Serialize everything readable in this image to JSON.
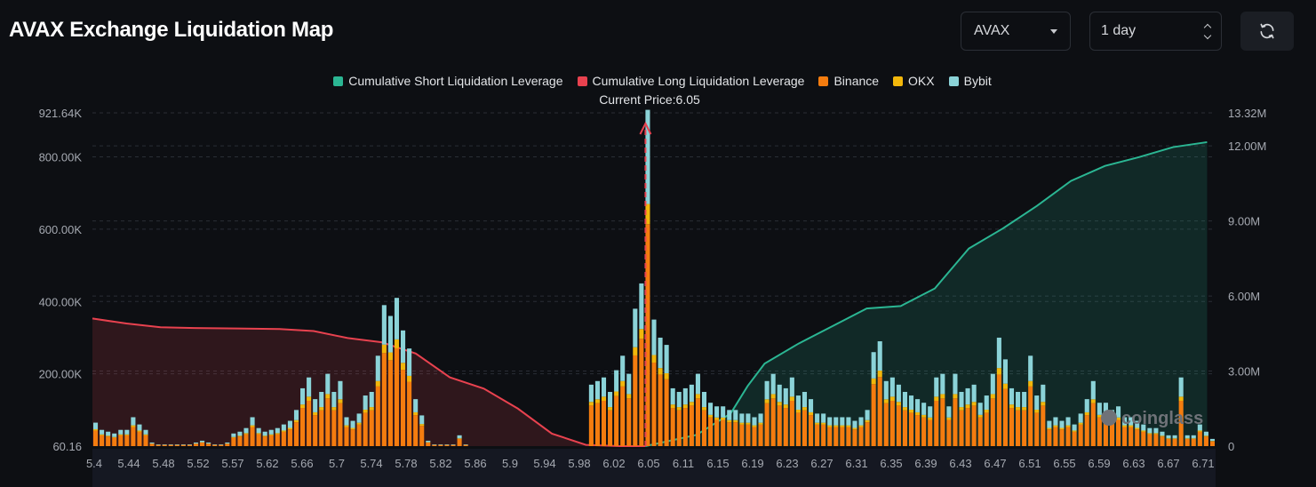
{
  "header": {
    "title": "AVAX Exchange Liquidation Map",
    "coin_select": "AVAX",
    "range_select": "1 day"
  },
  "icons": {
    "refresh": "refresh-icon",
    "coin_dropdown": "chevron-down-icon",
    "range_dropdown": "up-down-chevron-icon"
  },
  "watermark": "coinglass",
  "colors": {
    "background": "#0d0f13",
    "short": "#2bb693",
    "long": "#e8424f",
    "binance": "#f47c0f",
    "okx": "#f2b70b",
    "bybit": "#8bd3d8",
    "marker": "#e8424f"
  },
  "chart_data": {
    "type": "bar",
    "title": "AVAX Exchange Liquidation Map",
    "current_price_label": "Current Price:6.05",
    "current_price": 6.05,
    "legend": [
      {
        "name": "Cumulative Short Liquidation Leverage",
        "color": "#2bb693"
      },
      {
        "name": "Cumulative Long Liquidation Leverage",
        "color": "#e8424f"
      },
      {
        "name": "Binance",
        "color": "#f47c0f"
      },
      {
        "name": "OKX",
        "color": "#f2b70b"
      },
      {
        "name": "Bybit",
        "color": "#8bd3d8"
      }
    ],
    "x_tick_labels": [
      "5.4",
      "5.44",
      "5.48",
      "5.52",
      "5.57",
      "5.62",
      "5.66",
      "5.7",
      "5.74",
      "5.78",
      "5.82",
      "5.86",
      "5.9",
      "5.94",
      "5.98",
      "6.02",
      "6.05",
      "6.11",
      "6.15",
      "6.19",
      "6.23",
      "6.27",
      "6.31",
      "6.35",
      "6.39",
      "6.43",
      "6.47",
      "6.51",
      "6.55",
      "6.59",
      "6.63",
      "6.67",
      "6.71"
    ],
    "y_left_ticks": [
      "60.16",
      "200.00K",
      "400.00K",
      "600.00K",
      "800.00K",
      "921.64K"
    ],
    "y_left_values": [
      60.16,
      200000,
      400000,
      600000,
      800000,
      921640
    ],
    "y_left_range": [
      60.16,
      921640
    ],
    "y_right_ticks": [
      "0",
      "3.00M",
      "6.00M",
      "9.00M",
      "12.00M",
      "13.32M"
    ],
    "y_right_values": [
      0,
      3000000,
      6000000,
      9000000,
      12000000,
      13320000
    ],
    "y_right_range": [
      0,
      13320000
    ],
    "grid": true,
    "legend_position": "top-center",
    "bar_totals": [
      65,
      45,
      40,
      35,
      45,
      45,
      80,
      60,
      45,
      10,
      5,
      5,
      5,
      5,
      5,
      5,
      10,
      15,
      10,
      5,
      5,
      10,
      35,
      40,
      50,
      80,
      50,
      40,
      45,
      50,
      60,
      70,
      100,
      160,
      190,
      130,
      150,
      200,
      150,
      180,
      80,
      70,
      90,
      140,
      150,
      250,
      390,
      360,
      410,
      320,
      270,
      130,
      85,
      15,
      5,
      5,
      5,
      5,
      30,
      5,
      0,
      0,
      0,
      0,
      0,
      0,
      0,
      0,
      0,
      0,
      0,
      0,
      0,
      0,
      0,
      0,
      0,
      0,
      0,
      170,
      180,
      190,
      150,
      210,
      250,
      200,
      380,
      450,
      930,
      350,
      300,
      280,
      160,
      150,
      160,
      170,
      200,
      150,
      120,
      110,
      110,
      100,
      100,
      90,
      90,
      80,
      90,
      180,
      200,
      170,
      160,
      190,
      140,
      150,
      130,
      90,
      90,
      80,
      80,
      80,
      80,
      70,
      80,
      100,
      260,
      290,
      180,
      190,
      170,
      150,
      140,
      130,
      120,
      110,
      190,
      200,
      110,
      200,
      150,
      160,
      170,
      120,
      140,
      200,
      300,
      240,
      160,
      150,
      150,
      250,
      140,
      170,
      70,
      80,
      70,
      80,
      60,
      90,
      130,
      180,
      120,
      120,
      100,
      110,
      80,
      80,
      70,
      60,
      50,
      50,
      40,
      30,
      30,
      190,
      30,
      30,
      60,
      40,
      20
    ],
    "bar_totals_unit": "K",
    "cumulative_long": [
      {
        "price": 5.4,
        "value": 5100000
      },
      {
        "price": 5.44,
        "value": 4900000
      },
      {
        "price": 5.48,
        "value": 4750000
      },
      {
        "price": 5.52,
        "value": 4720000
      },
      {
        "price": 5.57,
        "value": 4700000
      },
      {
        "price": 5.62,
        "value": 4680000
      },
      {
        "price": 5.66,
        "value": 4600000
      },
      {
        "price": 5.7,
        "value": 4320000
      },
      {
        "price": 5.74,
        "value": 4150000
      },
      {
        "price": 5.78,
        "value": 3700000
      },
      {
        "price": 5.82,
        "value": 2750000
      },
      {
        "price": 5.86,
        "value": 2300000
      },
      {
        "price": 5.9,
        "value": 1500000
      },
      {
        "price": 5.94,
        "value": 500000
      },
      {
        "price": 5.98,
        "value": 50000
      },
      {
        "price": 6.02,
        "value": 0
      },
      {
        "price": 6.05,
        "value": 0
      }
    ],
    "cumulative_short": [
      {
        "price": 6.05,
        "value": 0
      },
      {
        "price": 6.11,
        "value": 450000
      },
      {
        "price": 6.15,
        "value": 1300000
      },
      {
        "price": 6.17,
        "value": 2400000
      },
      {
        "price": 6.19,
        "value": 3300000
      },
      {
        "price": 6.23,
        "value": 4100000
      },
      {
        "price": 6.27,
        "value": 4800000
      },
      {
        "price": 6.31,
        "value": 5500000
      },
      {
        "price": 6.35,
        "value": 5600000
      },
      {
        "price": 6.39,
        "value": 6300000
      },
      {
        "price": 6.43,
        "value": 7900000
      },
      {
        "price": 6.47,
        "value": 8700000
      },
      {
        "price": 6.51,
        "value": 9600000
      },
      {
        "price": 6.55,
        "value": 10600000
      },
      {
        "price": 6.59,
        "value": 11200000
      },
      {
        "price": 6.63,
        "value": 11550000
      },
      {
        "price": 6.67,
        "value": 11950000
      },
      {
        "price": 6.71,
        "value": 12150000
      }
    ]
  }
}
